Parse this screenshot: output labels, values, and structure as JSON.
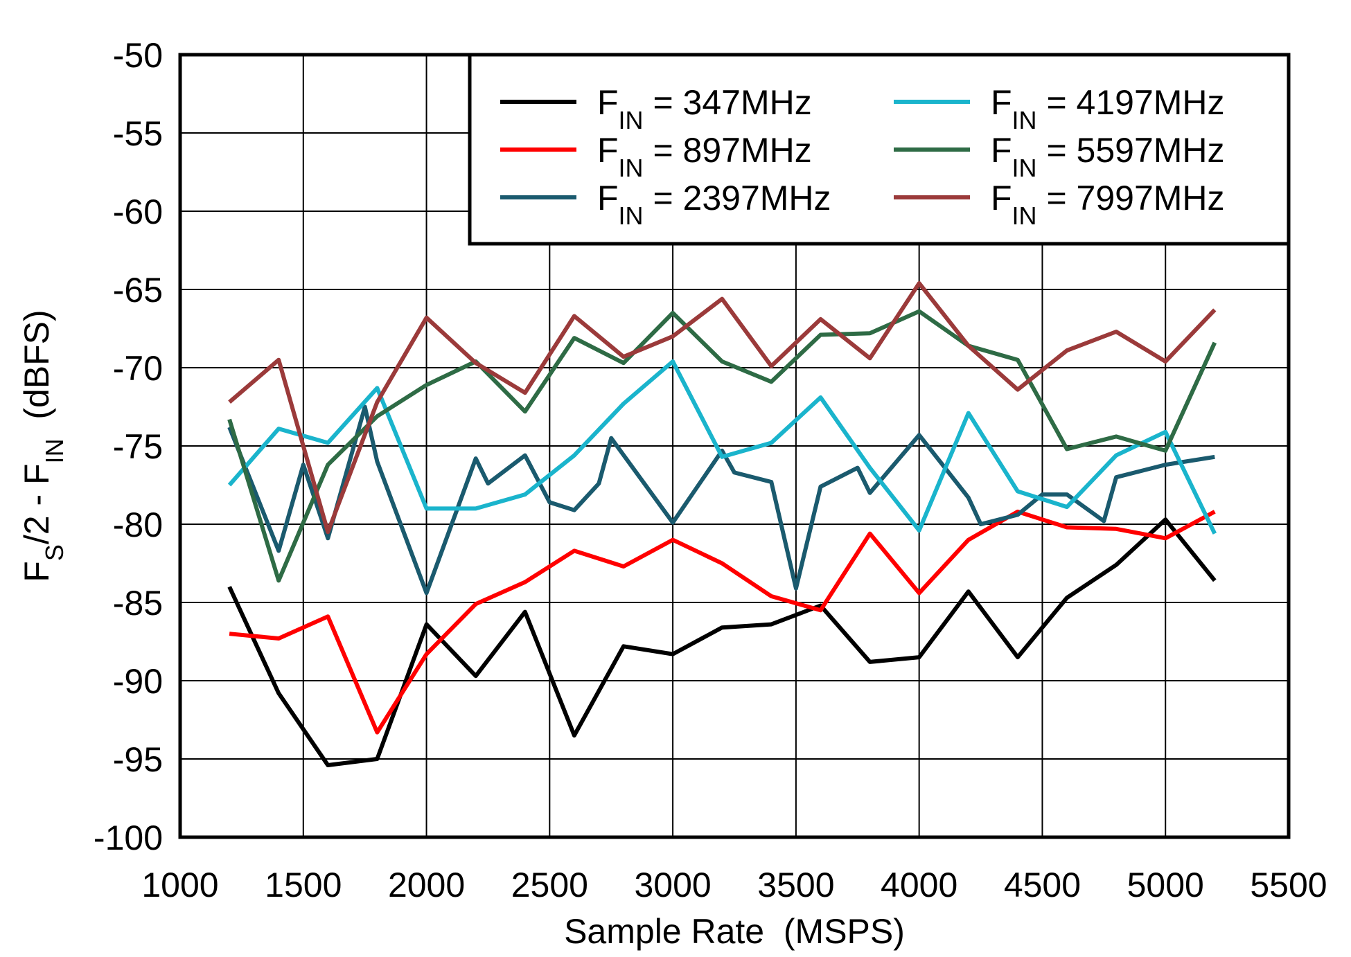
{
  "chart_data": {
    "type": "line",
    "xlabel": "Sample Rate  (MSPS)",
    "ylabel": "FS/2 - FIN  (dBFS)",
    "xlim": [
      1000,
      5500
    ],
    "xticks": [
      1000,
      1500,
      2000,
      2500,
      3000,
      3500,
      4000,
      4500,
      5000,
      5500
    ],
    "ylim": [
      -100,
      -50
    ],
    "yticks": [
      -100,
      -95,
      -90,
      -85,
      -80,
      -75,
      -70,
      -65,
      -60,
      -55,
      -50
    ],
    "grid": true,
    "legend": "upper right",
    "series": [
      {
        "name": "FIN = 347MHz",
        "color": "#000000",
        "x": [
          1200,
          1400,
          1600,
          1800,
          2000,
          2200,
          2400,
          2600,
          2800,
          3000,
          3200,
          3400,
          3600,
          3800,
          4000,
          4200,
          4400,
          4600,
          4800,
          5000,
          5200
        ],
        "values": [
          -84.0,
          -90.8,
          -95.4,
          -95.0,
          -86.4,
          -89.7,
          -85.6,
          -93.5,
          -87.8,
          -88.3,
          -86.6,
          -86.4,
          -85.2,
          -88.8,
          -88.5,
          -84.3,
          -88.5,
          -84.7,
          -82.6,
          -79.7,
          -83.6
        ]
      },
      {
        "name": "FIN = 897MHz",
        "color": "#ff0000",
        "x": [
          1200,
          1400,
          1600,
          1800,
          2000,
          2200,
          2400,
          2600,
          2800,
          3000,
          3200,
          3400,
          3600,
          3800,
          4000,
          4200,
          4400,
          4600,
          4800,
          5000,
          5200
        ],
        "values": [
          -87.0,
          -87.3,
          -85.9,
          -93.3,
          -88.3,
          -85.1,
          -83.7,
          -81.7,
          -82.7,
          -81.0,
          -82.5,
          -84.6,
          -85.5,
          -80.6,
          -84.4,
          -81.0,
          -79.2,
          -80.2,
          -80.3,
          -80.9,
          -79.2
        ]
      },
      {
        "name": "FIN = 2397MHz",
        "color": "#1a5a6e",
        "x": [
          1200,
          1400,
          1500,
          1600,
          1750,
          1800,
          2000,
          2200,
          2250,
          2400,
          2500,
          2600,
          2700,
          2750,
          3000,
          3200,
          3250,
          3400,
          3500,
          3600,
          3750,
          3800,
          4000,
          4200,
          4250,
          4400,
          4500,
          4600,
          4750,
          4800,
          5000,
          5200
        ],
        "values": [
          -73.8,
          -81.7,
          -76.2,
          -80.9,
          -72.5,
          -76.0,
          -84.4,
          -75.8,
          -77.4,
          -75.6,
          -78.6,
          -79.1,
          -77.4,
          -74.5,
          -79.9,
          -75.3,
          -76.7,
          -77.3,
          -84.1,
          -77.6,
          -76.4,
          -78.0,
          -74.3,
          -78.3,
          -80.0,
          -79.4,
          -78.1,
          -78.1,
          -79.8,
          -77.0,
          -76.2,
          -75.7
        ]
      },
      {
        "name": "FIN = 4197MHz",
        "color": "#1ab4cc",
        "x": [
          1200,
          1400,
          1600,
          1800,
          2000,
          2200,
          2400,
          2600,
          2800,
          3000,
          3200,
          3400,
          3600,
          3800,
          4000,
          4200,
          4400,
          4600,
          4800,
          5000,
          5200
        ],
        "values": [
          -77.5,
          -73.9,
          -74.8,
          -71.3,
          -79.0,
          -79.0,
          -78.1,
          -75.6,
          -72.3,
          -69.6,
          -75.7,
          -74.8,
          -71.9,
          -76.4,
          -80.4,
          -72.9,
          -77.9,
          -78.9,
          -75.6,
          -74.1,
          -80.6
        ]
      },
      {
        "name": "FIN = 5597MHz",
        "color": "#2e6b45",
        "x": [
          1200,
          1400,
          1600,
          1800,
          2000,
          2200,
          2400,
          2600,
          2800,
          3000,
          3200,
          3400,
          3600,
          3800,
          4000,
          4200,
          4400,
          4600,
          4800,
          5000,
          5200
        ],
        "values": [
          -73.3,
          -83.6,
          -76.2,
          -73.1,
          -71.1,
          -69.6,
          -72.8,
          -68.1,
          -69.7,
          -66.5,
          -69.6,
          -70.9,
          -67.9,
          -67.8,
          -66.4,
          -68.6,
          -69.5,
          -75.2,
          -74.4,
          -75.3,
          -68.4
        ]
      },
      {
        "name": "FIN = 7997MHz",
        "color": "#9b3a3a",
        "x": [
          1200,
          1400,
          1600,
          1800,
          2000,
          2200,
          2400,
          2600,
          2800,
          3000,
          3200,
          3400,
          3600,
          3800,
          4000,
          4200,
          4400,
          4600,
          4800,
          5000,
          5200
        ],
        "values": [
          -72.2,
          -69.5,
          -80.5,
          -72.2,
          -66.8,
          -69.7,
          -71.6,
          -66.7,
          -69.3,
          -68.0,
          -65.6,
          -69.9,
          -66.9,
          -69.4,
          -64.6,
          -68.6,
          -71.4,
          -68.9,
          -67.7,
          -69.6,
          -66.3
        ]
      }
    ]
  }
}
